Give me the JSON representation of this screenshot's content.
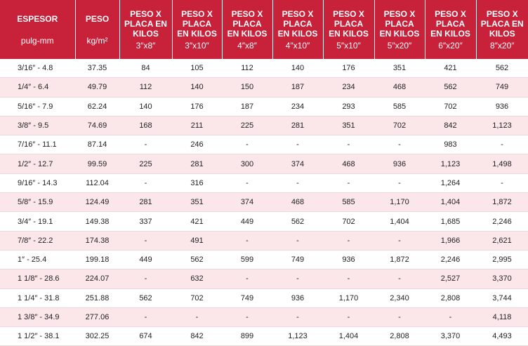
{
  "columns": [
    {
      "title": "ESPESOR",
      "sub": "pulg-mm"
    },
    {
      "title": "PESO",
      "sub": "kg/m²"
    },
    {
      "title": "PESO X PLACA EN KILOS",
      "sub": "3″x8″"
    },
    {
      "title": "PESO X PLACA EN KILOS",
      "sub": "3″x10″"
    },
    {
      "title": "PESO X PLACA EN KILOS",
      "sub": "4″x8″"
    },
    {
      "title": "PESO X PLACA EN KILOS",
      "sub": "4″x10″"
    },
    {
      "title": "PESO X PLACA EN KILOS",
      "sub": "5″x10″"
    },
    {
      "title": "PESO X PLACA EN KILOS",
      "sub": "5″x20″"
    },
    {
      "title": "PESO X PLACA EN KILOS",
      "sub": "6″x20″"
    },
    {
      "title": "PESO X PLACA EN KILOS",
      "sub": "8″x20″"
    }
  ],
  "rows": [
    [
      "3/16″ - 4.8",
      "37.35",
      "84",
      "105",
      "112",
      "140",
      "176",
      "351",
      "421",
      "562"
    ],
    [
      "1/4″ - 6.4",
      "49.79",
      "112",
      "140",
      "150",
      "187",
      "234",
      "468",
      "562",
      "749"
    ],
    [
      "5/16″ - 7.9",
      "62.24",
      "140",
      "176",
      "187",
      "234",
      "293",
      "585",
      "702",
      "936"
    ],
    [
      "3/8″ - 9.5",
      "74.69",
      "168",
      "211",
      "225",
      "281",
      "351",
      "702",
      "842",
      "1,123"
    ],
    [
      "7/16″ - 11.1",
      "87.14",
      "-",
      "246",
      "-",
      "-",
      "-",
      "-",
      "983",
      "-"
    ],
    [
      "1/2″ - 12.7",
      "99.59",
      "225",
      "281",
      "300",
      "374",
      "468",
      "936",
      "1,123",
      "1,498"
    ],
    [
      "9/16″ - 14.3",
      "112.04",
      "-",
      "316",
      "-",
      "-",
      "-",
      "-",
      "1,264",
      "-"
    ],
    [
      "5/8″ - 15.9",
      "124.49",
      "281",
      "351",
      "374",
      "468",
      "585",
      "1,170",
      "1,404",
      "1,872"
    ],
    [
      "3/4″ - 19.1",
      "149.38",
      "337",
      "421",
      "449",
      "562",
      "702",
      "1,404",
      "1,685",
      "2,246"
    ],
    [
      "7/8″ - 22.2",
      "174.38",
      "-",
      "491",
      "-",
      "-",
      "-",
      "-",
      "1,966",
      "2,621"
    ],
    [
      "1″ - 25.4",
      "199.18",
      "449",
      "562",
      "599",
      "749",
      "936",
      "1,872",
      "2,246",
      "2,995"
    ],
    [
      "1 1/8″ - 28.6",
      "224.07",
      "-",
      "632",
      "-",
      "-",
      "-",
      "-",
      "2,527",
      "3,370"
    ],
    [
      "1 1/4″ - 31.8",
      "251.88",
      "562",
      "702",
      "749",
      "936",
      "1,170",
      "2,340",
      "2,808",
      "3,744"
    ],
    [
      "1 3/8″ - 34.9",
      "277.06",
      "-",
      "-",
      "-",
      "-",
      "-",
      "-",
      "-",
      "4,118"
    ],
    [
      "1 1/2″ - 38.1",
      "302.25",
      "674",
      "842",
      "899",
      "1,123",
      "1,404",
      "2,808",
      "3,370",
      "4,493"
    ]
  ]
}
